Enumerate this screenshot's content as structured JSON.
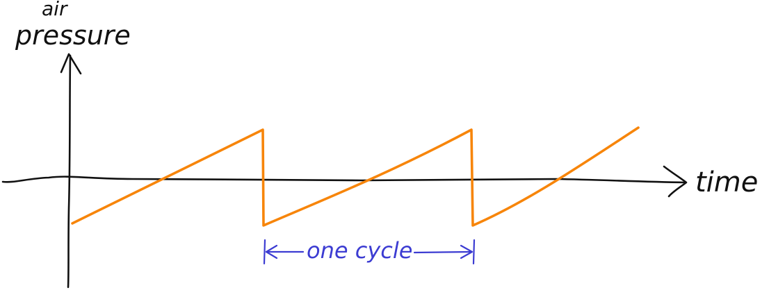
{
  "labels": {
    "y_axis_line1": "air",
    "y_axis_line2": "pressure",
    "x_axis": "time",
    "cycle": "one cycle"
  },
  "colors": {
    "wave": "#f7850a",
    "cycle_annotation": "#3c3cd2",
    "ink": "#111111"
  },
  "waveform": {
    "shape": "sawtooth",
    "cycles_shown": 3
  }
}
